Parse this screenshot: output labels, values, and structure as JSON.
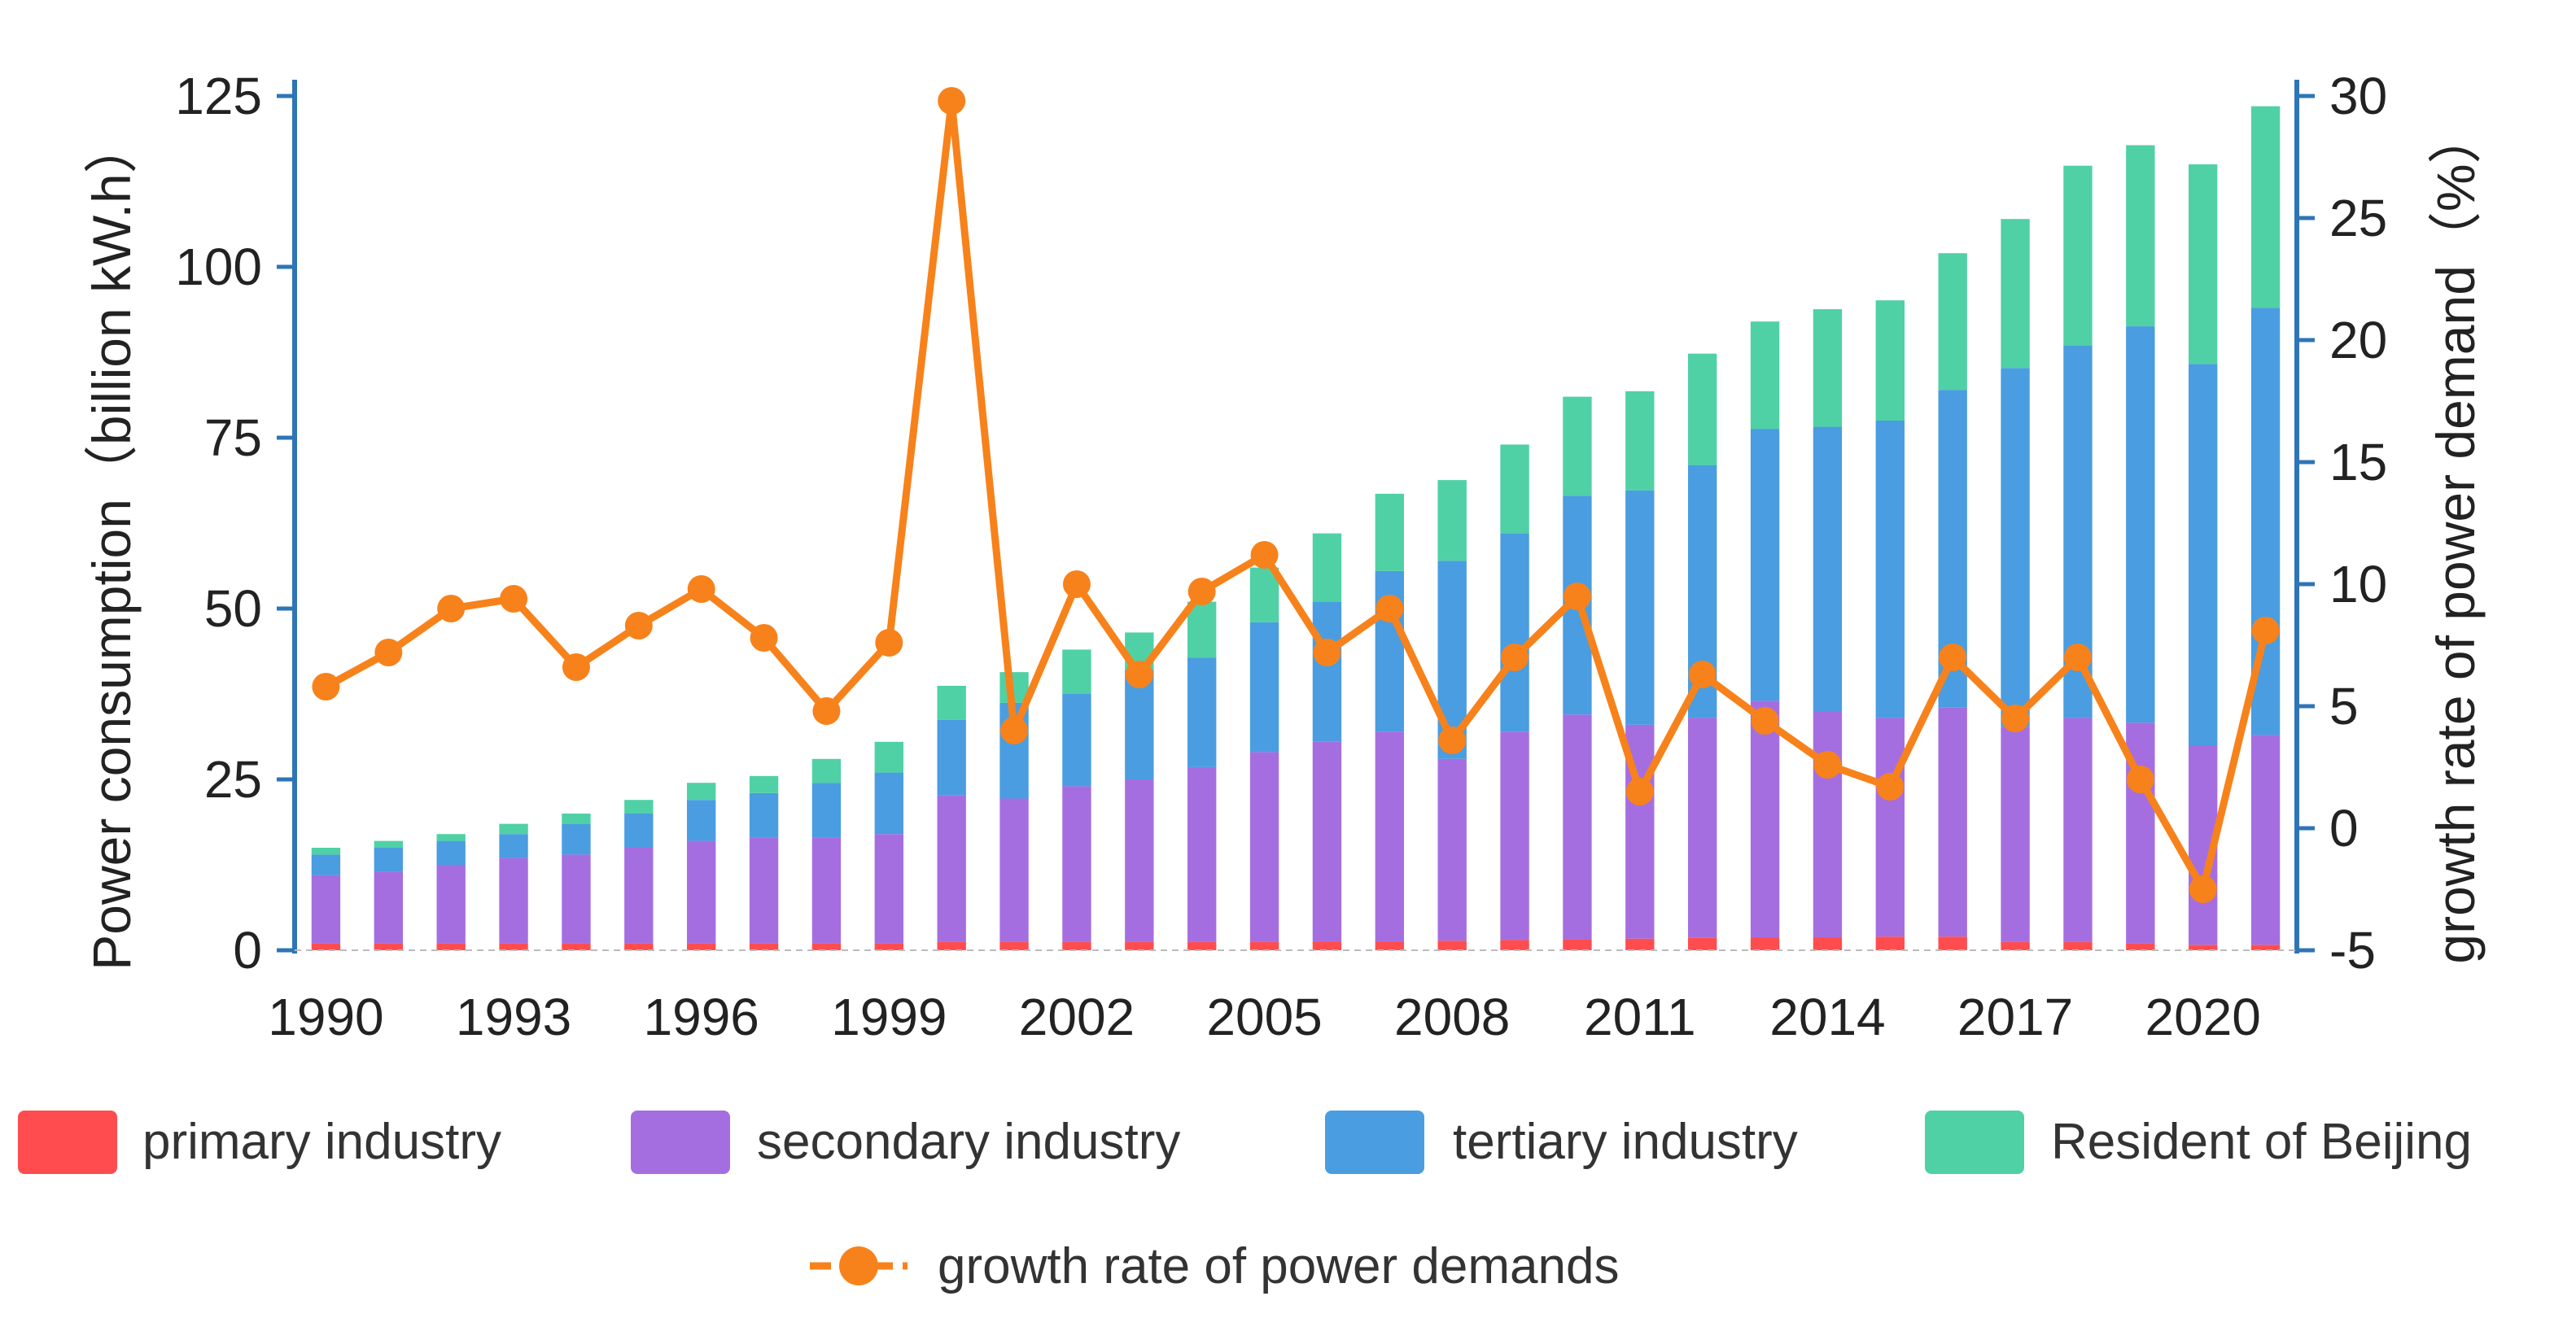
{
  "chart_data": {
    "type": "bar",
    "subtype": "stacked-bar-with-line",
    "categories": [
      "1990",
      "1991",
      "1992",
      "1993",
      "1994",
      "1995",
      "1996",
      "1997",
      "1998",
      "1999",
      "2000",
      "2001",
      "2002",
      "2003",
      "2004",
      "2005",
      "2006",
      "2007",
      "2008",
      "2009",
      "2010",
      "2011",
      "2012",
      "2013",
      "2014",
      "2015",
      "2016",
      "2017",
      "2018",
      "2019",
      "2020",
      "2021"
    ],
    "x_tick_labels": [
      "1990",
      "1993",
      "1996",
      "1999",
      "2002",
      "2005",
      "2008",
      "2011",
      "2014",
      "2017",
      "2020"
    ],
    "series": [
      {
        "name": "primary industry",
        "color": "#ff4d4f",
        "values": [
          1,
          1,
          1,
          1,
          1,
          1,
          1,
          1,
          1,
          1,
          1.2,
          1.2,
          1.2,
          1.2,
          1.2,
          1.2,
          1.3,
          1.3,
          1.4,
          1.5,
          1.6,
          1.7,
          1.8,
          1.9,
          1.9,
          2.0,
          2.0,
          1.2,
          1.2,
          1.0,
          0.8,
          0.8
        ]
      },
      {
        "name": "secondary industry",
        "color": "#a56ee0",
        "values": [
          10,
          10.5,
          11.5,
          12.5,
          13,
          14,
          15,
          15.5,
          15.5,
          16,
          21.5,
          21,
          22.8,
          23.8,
          25.6,
          27.8,
          29.2,
          30.7,
          26.6,
          30.5,
          32.9,
          31.3,
          32.2,
          34.6,
          33.1,
          32,
          33.5,
          31.5,
          32.8,
          32.3,
          29.2,
          30.7
        ]
      },
      {
        "name": "tertiary industry",
        "color": "#4a9de0",
        "values": [
          3,
          3.5,
          3.5,
          3.5,
          4.5,
          5,
          6,
          6.5,
          8,
          9,
          11,
          14,
          13.5,
          16,
          16,
          19,
          20.5,
          23.5,
          29,
          29,
          32,
          34.3,
          37,
          39.8,
          41.6,
          43.5,
          46.5,
          52.5,
          54.5,
          58,
          55.8,
          62.5
        ]
      },
      {
        "name": "Resident of Beijing",
        "color": "#4fd1a5",
        "values": [
          1,
          1,
          1,
          1.5,
          1.5,
          2,
          2.5,
          2.5,
          3.5,
          4.5,
          5,
          4.5,
          6.5,
          5.5,
          8.2,
          8,
          10,
          11.3,
          11.8,
          13,
          14.5,
          14.5,
          16.3,
          15.7,
          17.2,
          17.6,
          20,
          21.8,
          26.3,
          26.5,
          29.2,
          29.5
        ]
      }
    ],
    "line_series": {
      "name": "growth rate of power demands",
      "color": "#f7821b",
      "values": [
        5.8,
        7.2,
        9.0,
        9.4,
        6.6,
        8.3,
        9.8,
        7.8,
        4.8,
        7.6,
        29.8,
        4.0,
        10.0,
        6.3,
        9.7,
        11.2,
        7.2,
        9.0,
        3.6,
        7.0,
        9.5,
        1.5,
        6.3,
        4.4,
        2.6,
        1.7,
        7.0,
        4.5,
        7.0,
        2.0,
        -2.5,
        8.1
      ]
    },
    "y_left": {
      "label": "Power consumption（billion kW.h）",
      "min": 0,
      "max": 125,
      "ticks": [
        "0",
        "25",
        "50",
        "75",
        "100",
        "125"
      ],
      "tick_values": [
        0,
        25,
        50,
        75,
        100,
        125
      ]
    },
    "y_right": {
      "label": "growth rate of power demand（%）",
      "min": -5,
      "max": 30,
      "ticks": [
        "-5",
        "0",
        "5",
        "10",
        "15",
        "20",
        "25",
        "30"
      ],
      "tick_values": [
        -5,
        0,
        5,
        10,
        15,
        20,
        25,
        30
      ]
    },
    "legend_position": "bottom",
    "title": "",
    "xlabel": ""
  }
}
